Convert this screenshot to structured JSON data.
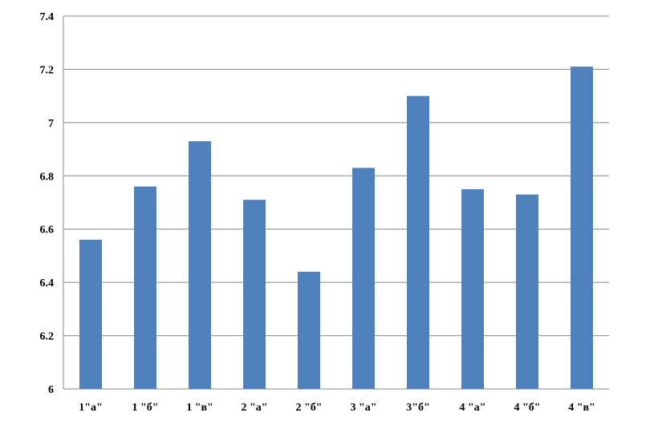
{
  "chart_data": {
    "type": "bar",
    "title": "",
    "xlabel": "",
    "ylabel": "",
    "categories": [
      "1\"а\"",
      "1 \"б\"",
      "1 \"в\"",
      "2 \"а\"",
      "2 \"б\"",
      "3 \"а\"",
      "3\"б\"",
      "4 \"а\"",
      "4 \"б\"",
      "4 \"в\""
    ],
    "values": [
      6.56,
      6.76,
      6.93,
      6.71,
      6.44,
      6.83,
      7.1,
      6.75,
      6.73,
      7.21
    ],
    "ylim": [
      6,
      7.4
    ],
    "yticks": [
      "6",
      "6.2",
      "6.4",
      "6.6",
      "6.8",
      "7",
      "7.2",
      "7.4"
    ],
    "grid": true,
    "legend": "none",
    "bar_color": "#4f81bd",
    "grid_color": "#868686"
  }
}
